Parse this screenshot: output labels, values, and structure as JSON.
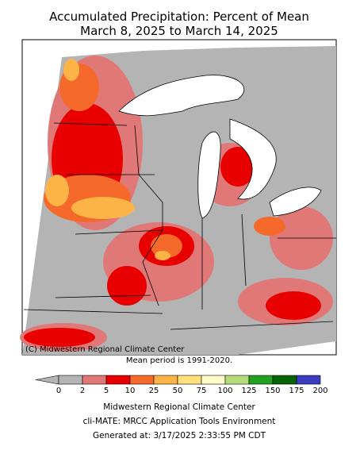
{
  "header": {
    "title": "Accumulated Precipitation: Percent of Mean",
    "subtitle": "March 8, 2025 to March 14, 2025"
  },
  "map": {
    "credit": "(C) Midwestern Regional Climate Center",
    "note": "Mean period is 1991-2020."
  },
  "legend": {
    "ticks": [
      0,
      2,
      5,
      10,
      25,
      50,
      75,
      100,
      125,
      150,
      175,
      200
    ],
    "below_color": "#b4b4b4",
    "colors": [
      "#b4b4b4",
      "#e07878",
      "#e80000",
      "#f56a2a",
      "#fdb447",
      "#ffe07a",
      "#fffcc8",
      "#b8dc7c",
      "#22a022",
      "#066406",
      "#3c3cc0"
    ]
  },
  "footer": {
    "line1": "Midwestern Regional Climate Center",
    "line2": "cli-MATE: MRCC Application Tools Environment",
    "line3": "Generated at: 3/17/2025 2:33:55 PM CDT"
  }
}
